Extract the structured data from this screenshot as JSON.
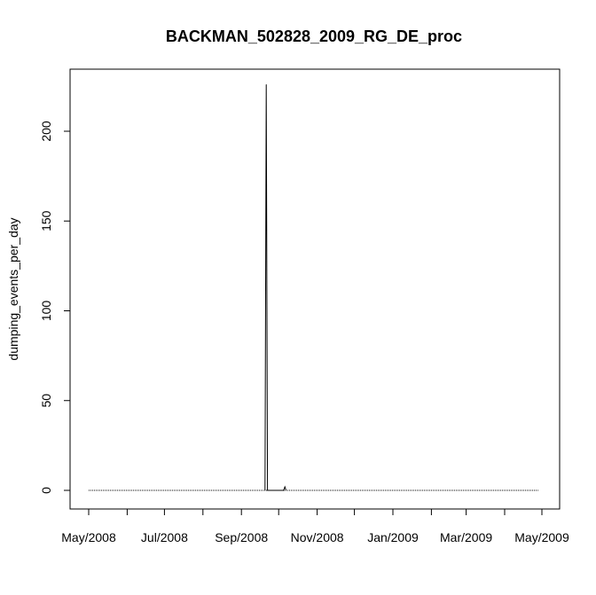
{
  "chart_data": {
    "type": "line",
    "title": "BACKMAN_502828_2009_RG_DE_proc",
    "xlabel": "",
    "ylabel": "dumping_events_per_day",
    "x_type": "date",
    "xlim": [
      "2008-05-01",
      "2009-05-01"
    ],
    "ylim": [
      0,
      225
    ],
    "x_ticks": [
      {
        "value": "2008-05-01",
        "label": "May/2008"
      },
      {
        "value": "2008-06-01",
        "label": ""
      },
      {
        "value": "2008-07-01",
        "label": "Jul/2008"
      },
      {
        "value": "2008-08-01",
        "label": ""
      },
      {
        "value": "2008-09-01",
        "label": "Sep/2008"
      },
      {
        "value": "2008-10-01",
        "label": ""
      },
      {
        "value": "2008-11-01",
        "label": "Nov/2008"
      },
      {
        "value": "2008-12-01",
        "label": ""
      },
      {
        "value": "2009-01-01",
        "label": "Jan/2009"
      },
      {
        "value": "2009-02-01",
        "label": ""
      },
      {
        "value": "2009-03-01",
        "label": "Mar/2009"
      },
      {
        "value": "2009-04-01",
        "label": ""
      },
      {
        "value": "2009-05-01",
        "label": "May/2009"
      }
    ],
    "y_ticks": [
      0,
      50,
      100,
      150,
      200
    ],
    "grid": false,
    "legend": "none",
    "series": [
      {
        "baseline_value": 0,
        "baseline_range": [
          "2008-05-01",
          "2009-04-28"
        ],
        "points": [
          {
            "x": "2008-09-20",
            "y": 0
          },
          {
            "x": "2008-09-21",
            "y": 226
          },
          {
            "x": "2008-09-22",
            "y": 0
          },
          {
            "x": "2008-10-05",
            "y": 0
          },
          {
            "x": "2008-10-06",
            "y": 2
          },
          {
            "x": "2008-10-07",
            "y": 0
          }
        ]
      }
    ],
    "colors": {
      "line": "#000000",
      "axis": "#000000"
    }
  }
}
